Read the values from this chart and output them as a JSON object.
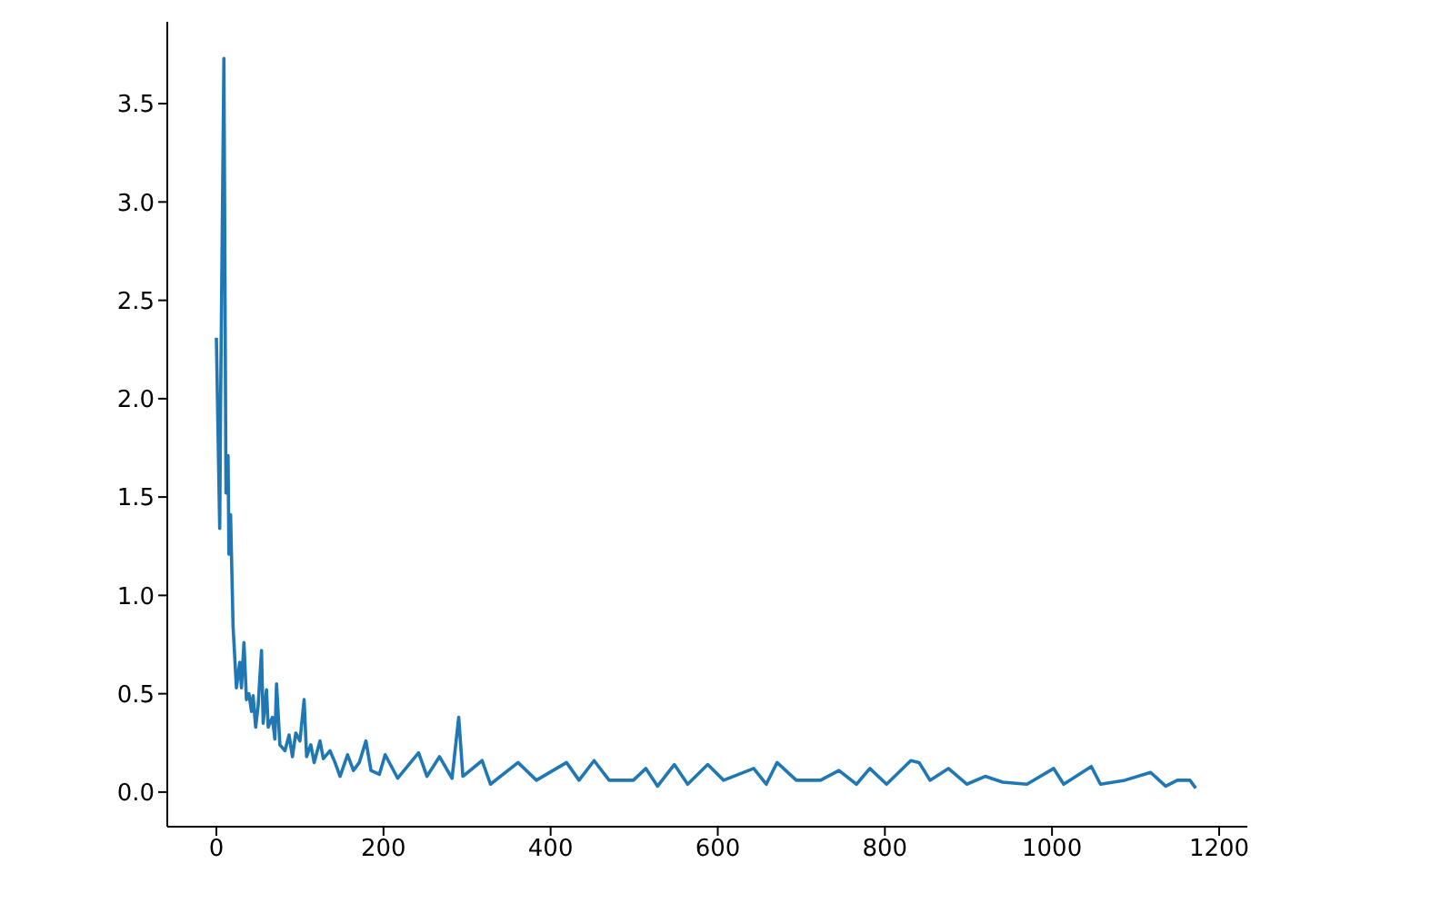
{
  "chart_data": {
    "type": "line",
    "x": [
      0,
      4,
      5,
      9,
      11.5,
      14,
      15,
      17,
      20,
      24,
      28,
      30,
      33,
      36,
      39,
      42,
      44,
      47,
      50,
      54,
      56,
      60,
      62,
      67,
      70,
      72,
      76,
      82,
      87,
      91,
      95,
      100,
      105,
      108,
      113,
      117,
      124,
      128,
      136,
      142,
      148,
      157,
      164,
      171,
      179,
      185,
      195,
      202,
      217,
      242,
      252,
      267,
      282,
      290,
      295,
      318,
      328,
      361,
      383,
      419,
      434,
      452,
      470,
      499,
      514,
      528,
      548,
      564,
      588,
      607,
      643,
      658,
      671,
      694,
      723,
      745,
      766,
      782,
      802,
      831,
      841,
      854,
      876,
      898,
      920,
      941,
      970,
      1002,
      1014,
      1047,
      1058,
      1087,
      1118,
      1136,
      1150,
      1165,
      1172
    ],
    "values": [
      2.31,
      1.34,
      1.95,
      3.73,
      1.52,
      1.71,
      1.21,
      1.41,
      0.84,
      0.53,
      0.66,
      0.53,
      0.76,
      0.47,
      0.5,
      0.41,
      0.49,
      0.33,
      0.44,
      0.72,
      0.35,
      0.52,
      0.33,
      0.38,
      0.27,
      0.55,
      0.24,
      0.21,
      0.29,
      0.18,
      0.3,
      0.26,
      0.47,
      0.18,
      0.24,
      0.15,
      0.26,
      0.17,
      0.21,
      0.15,
      0.08,
      0.19,
      0.11,
      0.15,
      0.26,
      0.11,
      0.09,
      0.19,
      0.07,
      0.2,
      0.08,
      0.18,
      0.07,
      0.38,
      0.08,
      0.16,
      0.04,
      0.15,
      0.06,
      0.15,
      0.06,
      0.16,
      0.06,
      0.06,
      0.12,
      0.03,
      0.14,
      0.04,
      0.14,
      0.06,
      0.12,
      0.04,
      0.15,
      0.06,
      0.06,
      0.11,
      0.04,
      0.12,
      0.04,
      0.16,
      0.15,
      0.06,
      0.12,
      0.04,
      0.08,
      0.05,
      0.04,
      0.12,
      0.04,
      0.13,
      0.04,
      0.06,
      0.1,
      0.03,
      0.06,
      0.06,
      0.02
    ],
    "color": "#1f77b4",
    "xlim": [
      -58.75,
      1233.75
    ],
    "xticks": [
      0,
      200,
      400,
      600,
      800,
      1000,
      1200
    ],
    "ylim": [
      -0.176,
      3.916
    ],
    "yticks": [
      {
        "value": 0,
        "label": "0.0"
      },
      0.5,
      {
        "value": 1,
        "label": "1.0"
      },
      1.5,
      {
        "value": 2,
        "label": "2.0"
      },
      2.5,
      {
        "value": 3,
        "label": "3.0"
      },
      3.5
    ]
  }
}
